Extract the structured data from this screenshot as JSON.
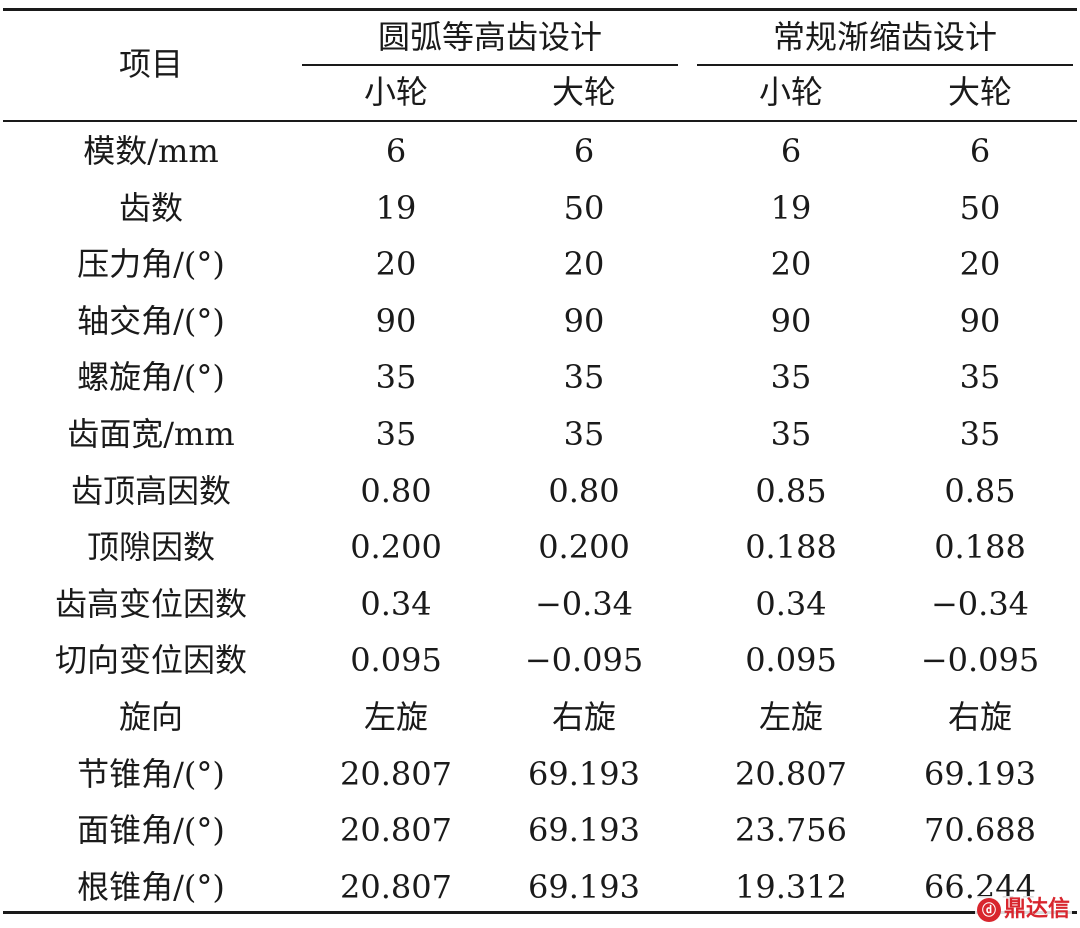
{
  "header": {
    "item_label": "项目",
    "groups": [
      "圆弧等高齿设计",
      "常规渐缩齿设计"
    ],
    "subheaders": [
      "小轮",
      "大轮",
      "小轮",
      "大轮"
    ]
  },
  "rows": [
    {
      "label": "模数/mm",
      "values": [
        "6",
        "6",
        "6",
        "6"
      ]
    },
    {
      "label": "齿数",
      "values": [
        "19",
        "50",
        "19",
        "50"
      ]
    },
    {
      "label": "压力角/(°)",
      "values": [
        "20",
        "20",
        "20",
        "20"
      ]
    },
    {
      "label": "轴交角/(°)",
      "values": [
        "90",
        "90",
        "90",
        "90"
      ]
    },
    {
      "label": "螺旋角/(°)",
      "values": [
        "35",
        "35",
        "35",
        "35"
      ]
    },
    {
      "label": "齿面宽/mm",
      "values": [
        "35",
        "35",
        "35",
        "35"
      ]
    },
    {
      "label": "齿顶高因数",
      "values": [
        "0.80",
        "0.80",
        "0.85",
        "0.85"
      ]
    },
    {
      "label": "顶隙因数",
      "values": [
        "0.200",
        "0.200",
        "0.188",
        "0.188"
      ]
    },
    {
      "label": "齿高变位因数",
      "values": [
        "0.34",
        "−0.34",
        "0.34",
        "−0.34"
      ]
    },
    {
      "label": "切向变位因数",
      "values": [
        "0.095",
        "−0.095",
        "0.095",
        "−0.095"
      ]
    },
    {
      "label": "旋向",
      "values": [
        "左旋",
        "右旋",
        "左旋",
        "右旋"
      ]
    },
    {
      "label": "节锥角/(°)",
      "values": [
        "20.807",
        "69.193",
        "20.807",
        "69.193"
      ]
    },
    {
      "label": "面锥角/(°)",
      "values": [
        "20.807",
        "69.193",
        "23.756",
        "70.688"
      ]
    },
    {
      "label": "根锥角/(°)",
      "values": [
        "20.807",
        "69.193",
        "19.312",
        "66.244"
      ]
    }
  ],
  "watermark": {
    "text": "鼎达信",
    "logo_icon": "ddx-logo-icon",
    "color": "#d8262e"
  }
}
